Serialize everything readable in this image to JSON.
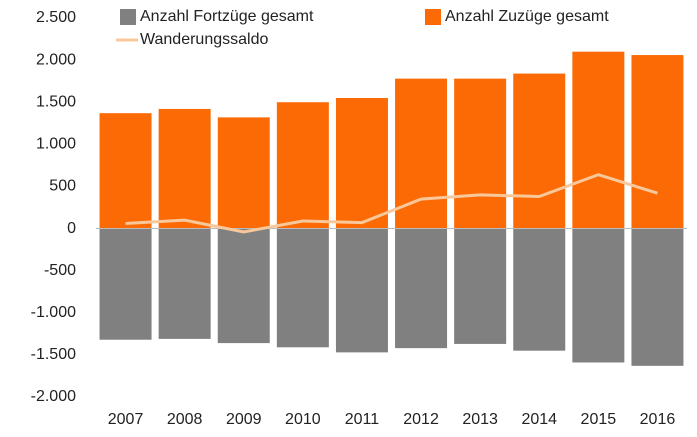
{
  "chart_data": {
    "type": "bar",
    "categories": [
      "2007",
      "2008",
      "2009",
      "2010",
      "2011",
      "2012",
      "2013",
      "2014",
      "2015",
      "2016"
    ],
    "series": [
      {
        "name": "Anzahl Fortzüge gesamt",
        "color": "#808080",
        "type": "bar",
        "values": [
          -1320,
          -1310,
          -1360,
          -1410,
          -1470,
          -1420,
          -1370,
          -1450,
          -1590,
          -1630
        ]
      },
      {
        "name": "Anzahl Zuzüge gesamt",
        "color": "#fb6a05",
        "type": "bar",
        "values": [
          1370,
          1420,
          1320,
          1500,
          1550,
          1780,
          1780,
          1840,
          2100,
          2060
        ]
      },
      {
        "name": "Wanderungssaldo",
        "color": "#f8c89b",
        "type": "line",
        "values": [
          60,
          100,
          -40,
          90,
          70,
          350,
          400,
          380,
          640,
          420
        ]
      }
    ],
    "ylim": [
      -2000,
      2500
    ],
    "yticks": [
      {
        "value": -2000,
        "label": "-2.000"
      },
      {
        "value": -1500,
        "label": "-1.500"
      },
      {
        "value": -1000,
        "label": "-1.000"
      },
      -500,
      0,
      500,
      {
        "value": 1000,
        "label": "1.000"
      },
      {
        "value": 1500,
        "label": "1.500"
      },
      {
        "value": 2000,
        "label": "2.000"
      },
      {
        "value": 2500,
        "label": "2.500"
      }
    ],
    "grid": false
  }
}
